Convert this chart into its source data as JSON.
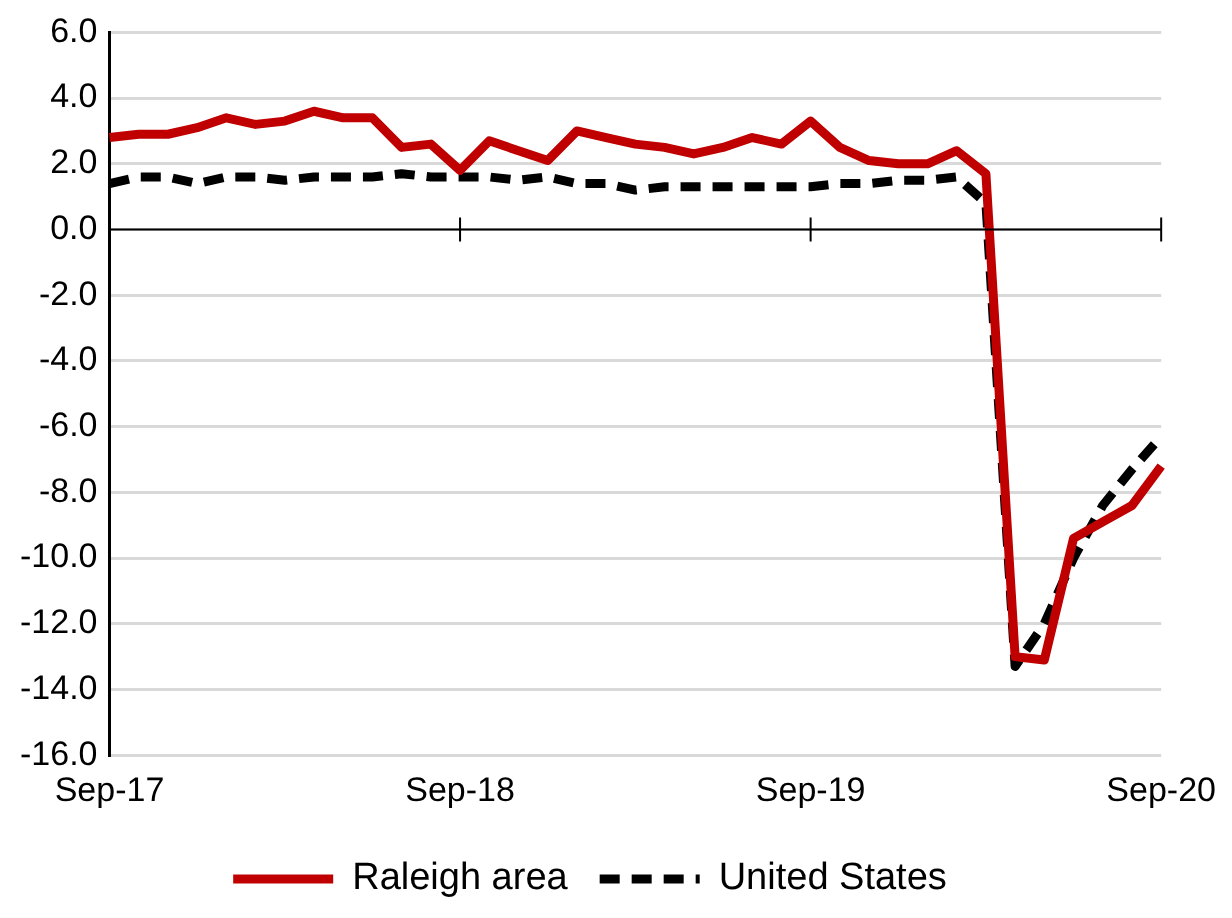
{
  "chart_data": {
    "type": "line",
    "categories": [
      "Sep-17",
      null,
      null,
      null,
      null,
      null,
      null,
      null,
      null,
      null,
      null,
      null,
      "Sep-18",
      null,
      null,
      null,
      null,
      null,
      null,
      null,
      null,
      null,
      null,
      null,
      "Sep-19",
      null,
      null,
      null,
      null,
      null,
      null,
      null,
      null,
      null,
      null,
      null,
      "Sep-20"
    ],
    "series": [
      {
        "name": "Raleigh area",
        "color": "#c00000",
        "line_style": "solid",
        "values": [
          2.8,
          2.9,
          2.9,
          3.1,
          3.4,
          3.2,
          3.3,
          3.6,
          3.4,
          3.4,
          2.5,
          2.6,
          1.8,
          2.7,
          2.4,
          2.1,
          3.0,
          2.8,
          2.6,
          2.5,
          2.3,
          2.5,
          2.8,
          2.6,
          3.3,
          2.5,
          2.1,
          2.0,
          2.0,
          2.4,
          1.7,
          -13.0,
          -13.1,
          -9.4,
          -8.9,
          -8.4,
          -7.2
        ]
      },
      {
        "name": "United States",
        "color": "#000000",
        "line_style": "dashed",
        "values": [
          1.4,
          1.6,
          1.6,
          1.4,
          1.6,
          1.6,
          1.5,
          1.6,
          1.6,
          1.6,
          1.7,
          1.6,
          1.6,
          1.6,
          1.5,
          1.6,
          1.4,
          1.4,
          1.2,
          1.3,
          1.3,
          1.3,
          1.3,
          1.3,
          1.3,
          1.4,
          1.4,
          1.5,
          1.5,
          1.6,
          0.8,
          -13.3,
          -12.0,
          -10.0,
          -8.4,
          -7.3,
          -6.3
        ]
      }
    ],
    "ylim": [
      -16,
      6
    ],
    "yticks": [
      {
        "value": -16,
        "label": "-16.0"
      },
      {
        "value": -14,
        "label": "-14.0"
      },
      {
        "value": -12,
        "label": "-12.0"
      },
      {
        "value": -10,
        "label": "-10.0"
      },
      {
        "value": -8,
        "label": "-8.0"
      },
      {
        "value": -6,
        "label": "-6.0"
      },
      {
        "value": -4,
        "label": "-4.0"
      },
      {
        "value": -2,
        "label": "-2.0"
      },
      {
        "value": 0,
        "label": "0.0"
      },
      {
        "value": 2,
        "label": "2.0"
      },
      {
        "value": 4,
        "label": "4.0"
      },
      {
        "value": 6,
        "label": "6.0"
      }
    ],
    "grid": "y",
    "legend": "bottom",
    "marker": "none"
  }
}
